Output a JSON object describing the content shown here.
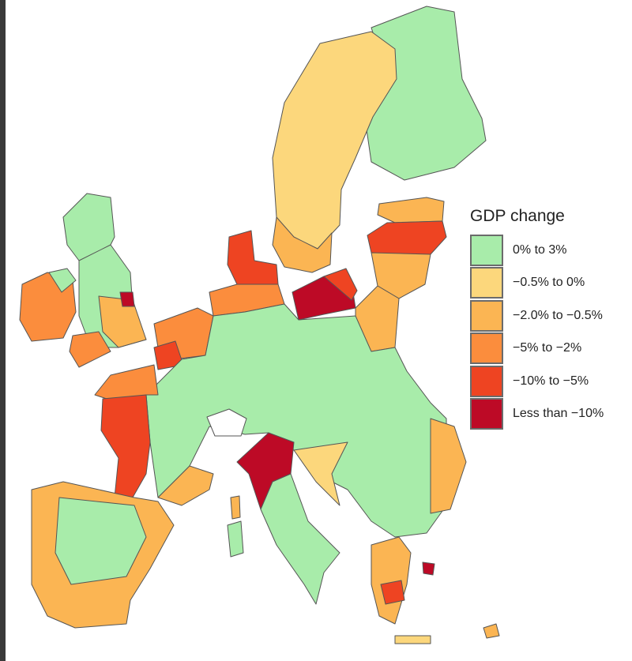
{
  "legend": {
    "title": "GDP change",
    "items": [
      {
        "label": "0% to 3%",
        "color": "#a8ecaa"
      },
      {
        "label": "−0.5% to 0%",
        "color": "#fcd77c"
      },
      {
        "label": "−2.0% to −0.5%",
        "color": "#fbb553"
      },
      {
        "label": "−5% to −2%",
        "color": "#fb8d3d"
      },
      {
        "label": "−10% to −5%",
        "color": "#ee4422"
      },
      {
        "label": "Less than −10%",
        "color": "#bd0a26"
      }
    ]
  }
}
